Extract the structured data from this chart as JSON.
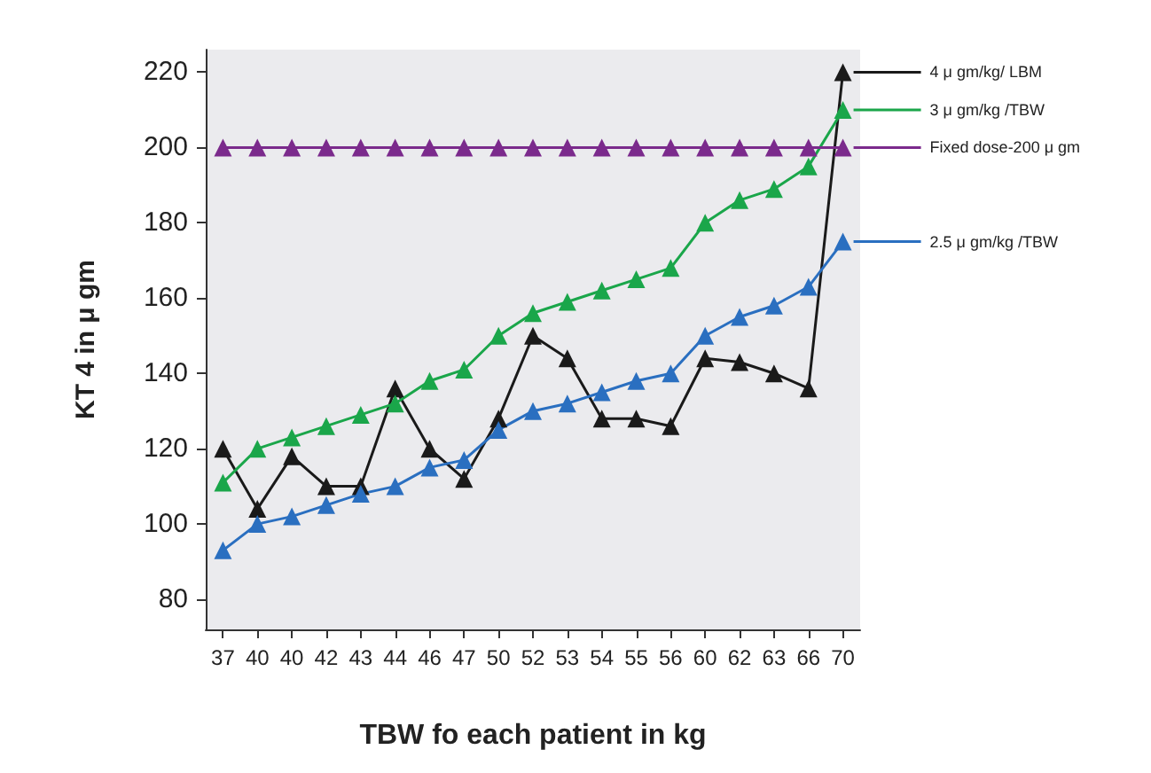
{
  "chart_data": {
    "type": "line",
    "xlabel": "TBW fo each patient in kg",
    "ylabel": "KT 4 in μ gm",
    "categories": [
      "37",
      "40",
      "40",
      "42",
      "43",
      "44",
      "46",
      "47",
      "50",
      "52",
      "53",
      "54",
      "55",
      "56",
      "60",
      "62",
      "63",
      "66",
      "70"
    ],
    "ylim": [
      72,
      226
    ],
    "yticks": [
      80,
      100,
      120,
      140,
      160,
      180,
      200,
      220
    ],
    "grid": false,
    "marker": "triangle",
    "line_style": "solid",
    "legend": "right",
    "series": [
      {
        "name": "4 μ gm/kg/ LBM",
        "color": "#1a1a1a",
        "values": [
          120,
          104,
          118,
          110,
          110,
          136,
          120,
          112,
          128,
          150,
          144,
          128,
          128,
          126,
          144,
          143,
          140,
          136,
          220
        ]
      },
      {
        "name": "3 μ gm/kg /TBW",
        "color": "#1aa64a",
        "values": [
          111,
          120,
          123,
          126,
          129,
          132,
          138,
          141,
          150,
          156,
          159,
          162,
          165,
          168,
          180,
          186,
          189,
          195,
          210
        ]
      },
      {
        "name": "Fixed dose-200 μ gm",
        "color": "#7b2a8c",
        "values": [
          200,
          200,
          200,
          200,
          200,
          200,
          200,
          200,
          200,
          200,
          200,
          200,
          200,
          200,
          200,
          200,
          200,
          200,
          200
        ]
      },
      {
        "name": "2.5 μ gm/kg /TBW",
        "color": "#2a6fc0",
        "values": [
          93,
          100,
          102,
          105,
          108,
          110,
          115,
          117,
          125,
          130,
          132,
          135,
          138,
          140,
          150,
          155,
          158,
          163,
          175
        ]
      }
    ]
  }
}
